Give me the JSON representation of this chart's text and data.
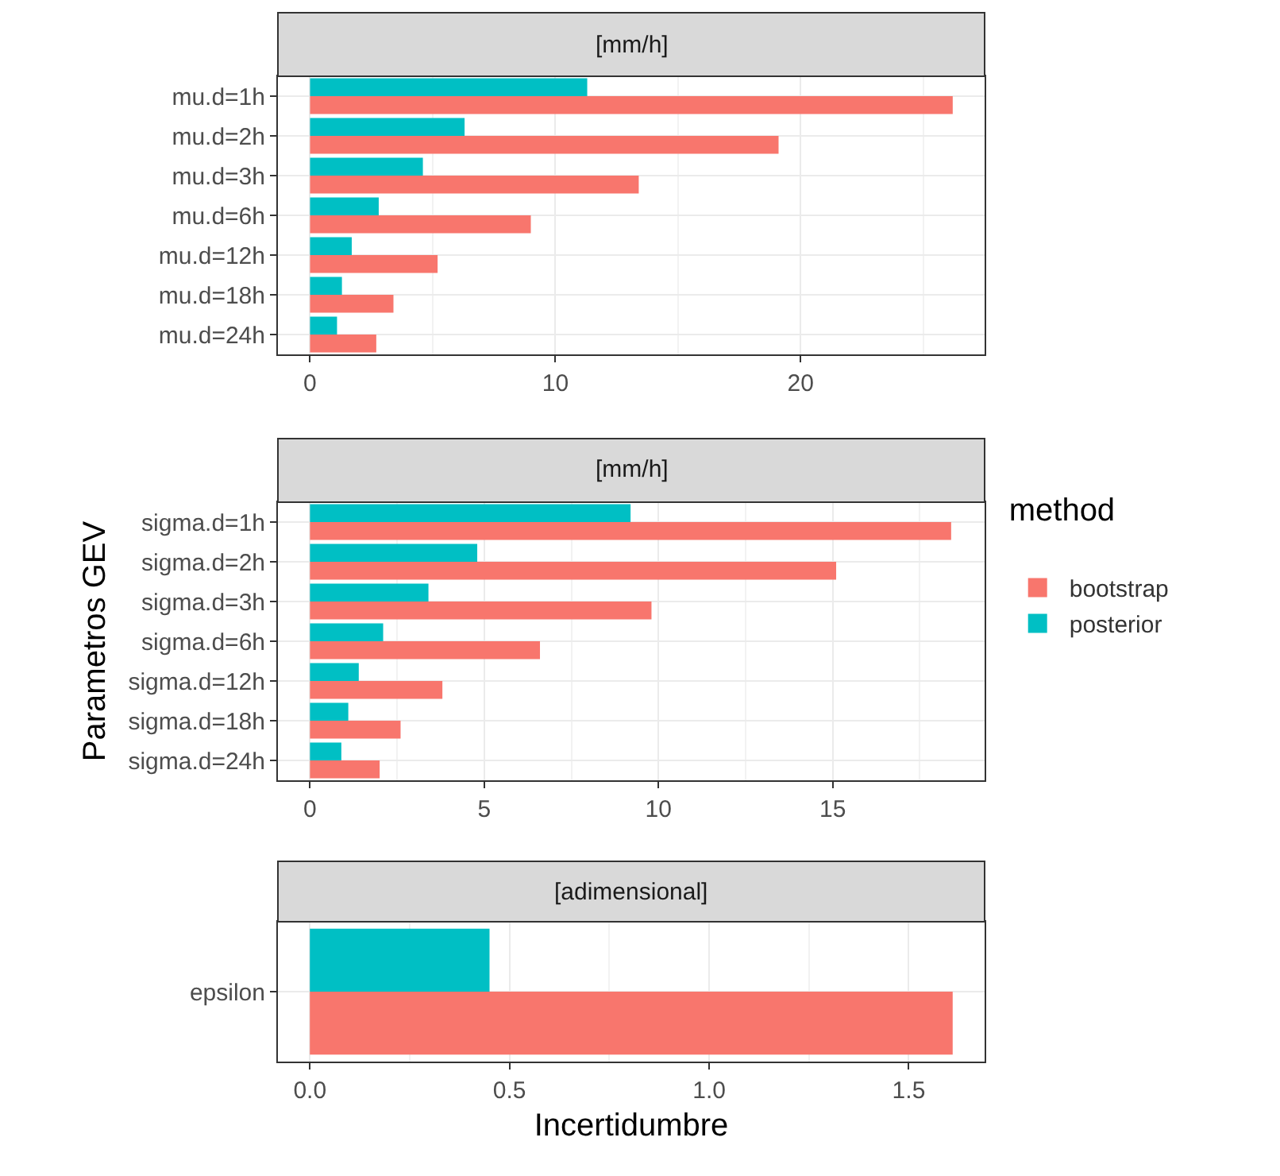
{
  "chart_data": [
    {
      "type": "bar",
      "orientation": "horizontal",
      "title": "[mm/h]",
      "legend": "right",
      "legend_title": "method",
      "categories": [
        "mu.d=1h",
        "mu.d=2h",
        "mu.d=3h",
        "mu.d=6h",
        "mu.d=12h",
        "mu.d=18h",
        "mu.d=24h"
      ],
      "series": [
        {
          "name": "bootstrap",
          "color": "#f8766d",
          "values": [
            26.2,
            19.1,
            13.4,
            9.0,
            5.2,
            3.4,
            2.7
          ]
        },
        {
          "name": "posterior",
          "color": "#00bfc4",
          "values": [
            11.3,
            6.3,
            4.6,
            2.8,
            1.7,
            1.3,
            1.1
          ]
        }
      ],
      "xlim": [
        -1.31,
        27.5
      ],
      "xticks": [
        0,
        10,
        20
      ],
      "grid": true
    },
    {
      "type": "bar",
      "orientation": "horizontal",
      "title": "[mm/h]",
      "ylabel": "Parametros GEV",
      "categories": [
        "sigma.d=1h",
        "sigma.d=2h",
        "sigma.d=3h",
        "sigma.d=6h",
        "sigma.d=12h",
        "sigma.d=18h",
        "sigma.d=24h"
      ],
      "series": [
        {
          "color": "#f8766d",
          "values": [
            18.4,
            15.1,
            9.8,
            6.6,
            3.8,
            2.6,
            2.0
          ]
        },
        {
          "color": "#00bfc4",
          "values": [
            9.2,
            4.8,
            3.4,
            2.1,
            1.4,
            1.1,
            0.9
          ]
        }
      ],
      "xlim": [
        -0.92,
        19.36
      ],
      "xticks": [
        0,
        5,
        10,
        15
      ],
      "grid": true
    },
    {
      "type": "bar",
      "orientation": "horizontal",
      "title": "[adimensional]",
      "xlabel": "Incertidumbre",
      "categories": [
        "epsilon"
      ],
      "series": [
        {
          "color": "#f8766d",
          "values": [
            1.61
          ]
        },
        {
          "color": "#00bfc4",
          "values": [
            0.45
          ]
        }
      ],
      "xlim": [
        -0.08,
        1.69
      ],
      "xticks": [
        {
          "value": 0,
          "label": "0.0"
        },
        {
          "value": 0.5,
          "label": "0.5"
        },
        {
          "value": 1.0,
          "label": "1.0"
        },
        {
          "value": 1.5,
          "label": "1.5"
        }
      ],
      "grid": true
    }
  ]
}
